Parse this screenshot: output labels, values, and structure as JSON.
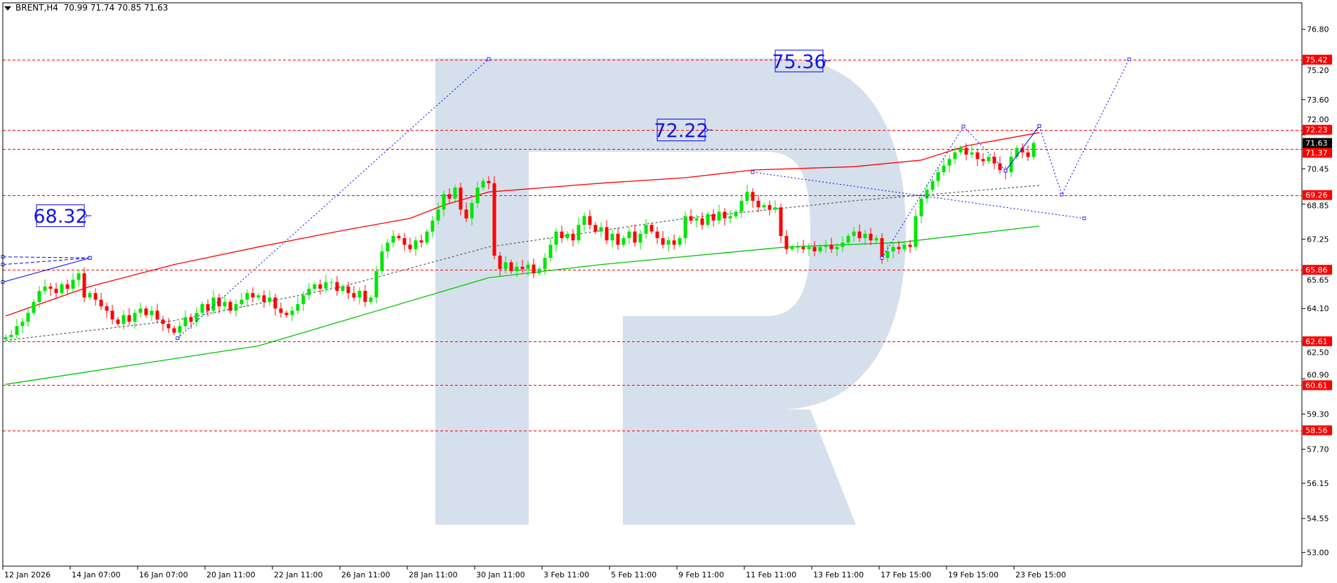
{
  "header": {
    "symbol": "BRENT,H4",
    "ohlc": "70.99 71.74 70.85 71.63",
    "menu_icon": "triangle-down-icon"
  },
  "colors": {
    "bull": "#00e600",
    "bear": "#ff0000",
    "level": "#ff0000",
    "forecast": "#0000ff",
    "ma_fast": "#ff0000",
    "ma_slow": "#00c800",
    "ma_mid": "#666666",
    "watermark": "#d6e0ec",
    "current_price_bg": "#000000"
  },
  "chart_data": {
    "type": "candlestick",
    "symbol": "BRENT",
    "timeframe": "H4",
    "ylim": [
      53.0,
      77.4
    ],
    "grid": false,
    "y_ticks": [
      "76.80",
      "75.20",
      "73.60",
      "72.00",
      "70.45",
      "68.85",
      "67.25",
      "65.65",
      "64.10",
      "62.50",
      "60.90",
      "59.30",
      "57.70",
      "56.15",
      "54.55",
      "53.00"
    ],
    "x_ticks": [
      "12 Jan 2026",
      "14 Jan 07:00",
      "16 Jan 07:00",
      "20 Jan 11:00",
      "22 Jan 11:00",
      "26 Jan 11:00",
      "28 Jan 11:00",
      "30 Jan 11:00",
      "3 Feb 11:00",
      "5 Feb 11:00",
      "9 Feb 11:00",
      "11 Feb 11:00",
      "13 Feb 11:00",
      "17 Feb 15:00",
      "19 Feb 15:00",
      "23 Feb 15:00"
    ],
    "closes": [
      62.8,
      62.9,
      63.3,
      63.5,
      63.9,
      64.4,
      64.9,
      65.1,
      65.0,
      64.8,
      65.2,
      65.0,
      65.4,
      65.7,
      64.6,
      64.8,
      64.5,
      64.2,
      64.0,
      63.6,
      63.4,
      63.8,
      63.5,
      63.9,
      64.1,
      63.8,
      64.0,
      63.6,
      63.4,
      63.2,
      63.0,
      63.3,
      63.7,
      63.5,
      63.9,
      64.3,
      64.0,
      64.6,
      64.2,
      64.4,
      64.0,
      64.3,
      64.5,
      64.8,
      64.6,
      64.7,
      64.4,
      64.6,
      64.1,
      63.9,
      63.8,
      64.0,
      64.3,
      64.7,
      65.0,
      65.2,
      65.0,
      65.3,
      65.3,
      64.9,
      65.1,
      64.8,
      64.6,
      64.9,
      64.4,
      64.6,
      65.8,
      66.7,
      67.1,
      67.4,
      67.3,
      67.0,
      66.8,
      67.2,
      67.1,
      67.6,
      68.1,
      68.6,
      69.3,
      69.1,
      69.6,
      68.6,
      68.2,
      68.9,
      69.6,
      69.9,
      69.8,
      66.5,
      65.9,
      66.2,
      65.8,
      66.0,
      65.9,
      66.1,
      65.7,
      65.9,
      66.4,
      67.0,
      67.6,
      67.3,
      67.5,
      67.2,
      67.9,
      68.3,
      67.9,
      67.6,
      67.8,
      67.2,
      67.5,
      67.0,
      67.3,
      67.6,
      67.1,
      67.5,
      67.9,
      67.6,
      67.3,
      67.0,
      67.2,
      67.0,
      67.3,
      68.3,
      68.1,
      68.2,
      67.9,
      68.4,
      68.1,
      68.5,
      68.2,
      68.3,
      68.5,
      69.0,
      69.4,
      69.0,
      68.7,
      68.8,
      68.6,
      68.7,
      67.4,
      66.8,
      66.9,
      66.9,
      66.8,
      66.9,
      66.7,
      66.9,
      67.0,
      66.8,
      66.9,
      67.1,
      67.4,
      67.6,
      67.3,
      67.5,
      67.2,
      67.3,
      66.4,
      66.7,
      66.9,
      66.8,
      67.0,
      66.9,
      68.3,
      69.1,
      69.5,
      69.9,
      70.3,
      70.6,
      70.9,
      71.2,
      71.4,
      71.1,
      71.2,
      70.9,
      70.8,
      71.0,
      70.7,
      70.4,
      70.3,
      71.0,
      71.4,
      71.2,
      70.99
    ],
    "last_candle": {
      "open": 70.99,
      "high": 71.74,
      "low": 70.85,
      "close": 71.63
    },
    "current_price": "71.63",
    "levels": [
      "75.42",
      "72.23",
      "71.37",
      "69.26",
      "65.86",
      "62.61",
      "60.61",
      "58.56"
    ],
    "moving_averages": [
      {
        "color_key": "ma_fast",
        "style": "solid",
        "points": [
          [
            0,
            63.76
          ],
          [
            15,
            65.1
          ],
          [
            30,
            66.1
          ],
          [
            45,
            66.9
          ],
          [
            60,
            67.65
          ],
          [
            72,
            68.2
          ],
          [
            78,
            68.8
          ],
          [
            86,
            69.4
          ],
          [
            91,
            69.5
          ],
          [
            106,
            69.8
          ],
          [
            121,
            70.05
          ],
          [
            133,
            70.4
          ],
          [
            151,
            70.55
          ],
          [
            163,
            70.85
          ],
          [
            171,
            71.5
          ],
          [
            184,
            72.1
          ]
        ]
      },
      {
        "color_key": "ma_mid",
        "style": "dotted",
        "points": [
          [
            0,
            62.65
          ],
          [
            30,
            63.55
          ],
          [
            60,
            65.1
          ],
          [
            86,
            66.9
          ],
          [
            121,
            68.2
          ],
          [
            151,
            69.0
          ],
          [
            184,
            69.7
          ]
        ]
      },
      {
        "color_key": "ma_slow",
        "style": "solid",
        "points": [
          [
            0,
            60.65
          ],
          [
            45,
            62.4
          ],
          [
            86,
            65.5
          ],
          [
            106,
            66.1
          ],
          [
            139,
            66.9
          ],
          [
            159,
            67.1
          ],
          [
            184,
            67.85
          ]
        ]
      }
    ],
    "forecast_lines": [
      {
        "style": "dotted",
        "points": [
          [
            30.6,
            62.75
          ],
          [
            86,
            75.45
          ]
        ]
      },
      {
        "style": "dotted",
        "points": [
          [
            133,
            70.3
          ],
          [
            192,
            68.2
          ]
        ]
      },
      {
        "style": "dotted",
        "points": [
          [
            156,
            66.4
          ],
          [
            170.5,
            72.38
          ],
          [
            178,
            70.37
          ]
        ]
      },
      {
        "style": "solid",
        "points": [
          [
            178,
            70.37
          ],
          [
            184,
            72.4
          ]
        ]
      },
      {
        "style": "dotted",
        "points": [
          [
            184,
            72.4
          ],
          [
            188,
            69.28
          ],
          [
            200,
            75.44
          ]
        ]
      },
      {
        "style": "solid",
        "points": [
          [
            -0.5,
            65.3
          ],
          [
            15,
            66.4
          ]
        ]
      },
      {
        "style": "dashed",
        "points": [
          [
            -0.5,
            66.45
          ],
          [
            15,
            66.4
          ]
        ]
      },
      {
        "style": "dashed",
        "points": [
          [
            -0.5,
            66.1
          ],
          [
            15,
            66.4
          ]
        ]
      }
    ],
    "annotations": [
      {
        "text": "68.32",
        "bar": 14,
        "price": 68.32
      },
      {
        "text": "72.22",
        "bar": 124.5,
        "price": 72.22
      },
      {
        "text": "75.36",
        "bar": 145.5,
        "price": 75.36
      }
    ]
  }
}
